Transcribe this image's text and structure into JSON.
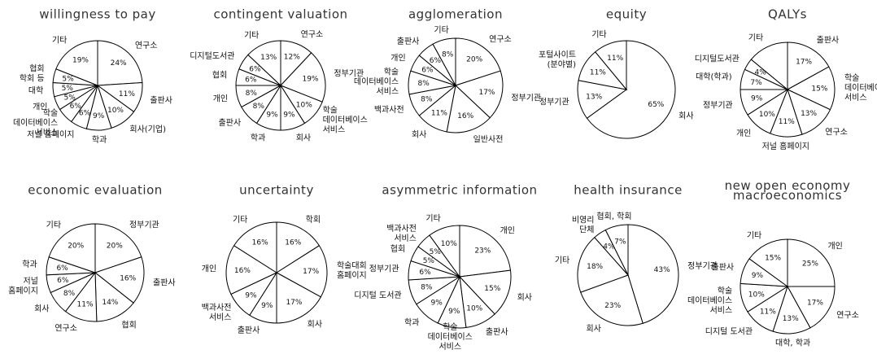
{
  "chart_data": [
    {
      "type": "pie",
      "title": "willingness to pay",
      "color": "#ffffff",
      "categories": [
        "연구소",
        "출판사",
        "회사(기업)",
        "학과",
        "저널 홈페이지",
        "학술\n데이터베이스\n서비스",
        "개인",
        "대학",
        "협회\n학회 등",
        "기타"
      ],
      "values": [
        24,
        11,
        10,
        9,
        6,
        6,
        5,
        5,
        5,
        19
      ],
      "value_labels": [
        "24%",
        "11%",
        "10%",
        "9%",
        "6%",
        "6%",
        "5%",
        "5%",
        "5%",
        "19%"
      ]
    },
    {
      "type": "pie",
      "title": "contingent valuation",
      "color": "#ffffff",
      "categories": [
        "연구소",
        "정부기관",
        "학술\n데이터베이스\n서비스",
        "회사",
        "학과",
        "출판사",
        "개인",
        "협회",
        "디지털도서관",
        "기타"
      ],
      "values": [
        12,
        19,
        10,
        9,
        9,
        8,
        8,
        6,
        6,
        13
      ],
      "value_labels": [
        "12%",
        "19%",
        "10%",
        "9%",
        "9%",
        "8%",
        "8%",
        "6%",
        "6%",
        "13%"
      ]
    },
    {
      "type": "pie",
      "title": "agglomeration",
      "color": "#ffffff",
      "categories": [
        "연구소",
        "정부기관",
        "일반사전",
        "회사",
        "백과사전",
        "학술\n데이터베이스\n서비스",
        "개인",
        "출판사",
        "기타"
      ],
      "values": [
        20,
        17,
        16,
        11,
        8,
        8,
        6,
        6,
        8
      ],
      "value_labels": [
        "20%",
        "17%",
        "16%",
        "11%",
        "8%",
        "8%",
        "6%",
        "6%",
        "8%"
      ]
    },
    {
      "type": "pie",
      "title": "equity",
      "color": "#ffffff",
      "categories": [
        "회사",
        "정부기관",
        "포털사이트\n(분야별)",
        "기타"
      ],
      "values": [
        65,
        13,
        11,
        11
      ],
      "value_labels": [
        "65%",
        "13%",
        "11%",
        "11%"
      ]
    },
    {
      "type": "pie",
      "title": "QALYs",
      "color": "#ffffff",
      "categories": [
        "출판사",
        "학술\n데이터베이스\n서비스",
        "연구소",
        "저널 홈페이지",
        "개인",
        "정부기관",
        "대학(학과)",
        "디지털도서관",
        "기타"
      ],
      "values": [
        17,
        15,
        13,
        11,
        10,
        9,
        7,
        4,
        14
      ],
      "value_labels": [
        "17%",
        "15%",
        "13%",
        "11%",
        "10%",
        "9%",
        "7%",
        "4%",
        null
      ]
    },
    {
      "type": "pie",
      "title": "economic evaluation",
      "color": "#ffffff",
      "categories": [
        "정부기관",
        "출판사",
        "협회",
        "연구소",
        "회사",
        "저널\n홈페이지",
        "학과",
        "기타"
      ],
      "values": [
        20,
        16,
        14,
        11,
        8,
        6,
        6,
        20
      ],
      "value_labels": [
        "20%",
        "16%",
        "14%",
        "11%",
        "8%",
        "6%",
        "6%",
        "20%"
      ]
    },
    {
      "type": "pie",
      "title": "uncertainty",
      "color": "#ffffff",
      "categories": [
        "학회",
        "학술대회\n홈페이지",
        "회사",
        "출판사",
        "백과사전\n서비스",
        "개인",
        "기타"
      ],
      "values": [
        16,
        17,
        17,
        9,
        9,
        16,
        16
      ],
      "value_labels": [
        "16%",
        "17%",
        "17%",
        "9%",
        "9%",
        "16%",
        "16%"
      ]
    },
    {
      "type": "pie",
      "title": "asymmetric information",
      "color": "#ffffff",
      "categories": [
        "개인",
        "회사",
        "출판사",
        "학술\n데이터베이스\n서비스",
        "학과",
        "디지털 도서관",
        "정부기관",
        "협회",
        "백과사전\n서비스",
        "기타"
      ],
      "values": [
        23,
        15,
        10,
        9,
        9,
        8,
        6,
        5,
        5,
        10
      ],
      "value_labels": [
        "23%",
        "15%",
        "10%",
        "9%",
        "9%",
        "8%",
        "6%",
        "5%",
        "5%",
        "10%"
      ]
    },
    {
      "type": "pie",
      "title": "health insurance",
      "color": "#ffffff",
      "categories": [
        "정부기관",
        "회사",
        "기타",
        "비영리\n단체",
        "협회, 학회"
      ],
      "values": [
        43,
        23,
        18,
        4,
        7
      ],
      "value_labels": [
        "43%",
        "23%",
        "18%",
        "4%",
        "7%"
      ]
    },
    {
      "type": "pie",
      "title": "new open economy\nmacroeconomics",
      "color": "#ffffff",
      "categories": [
        "개인",
        "연구소",
        "대학, 학과",
        "디지털 도서관",
        "학술\n데이터베이스\n서비스",
        "출판사",
        "기타"
      ],
      "values": [
        25,
        17,
        13,
        11,
        10,
        9,
        15
      ],
      "value_labels": [
        "25%",
        "17%",
        "13%",
        "11%",
        "10%",
        "9%",
        "15%"
      ]
    }
  ]
}
